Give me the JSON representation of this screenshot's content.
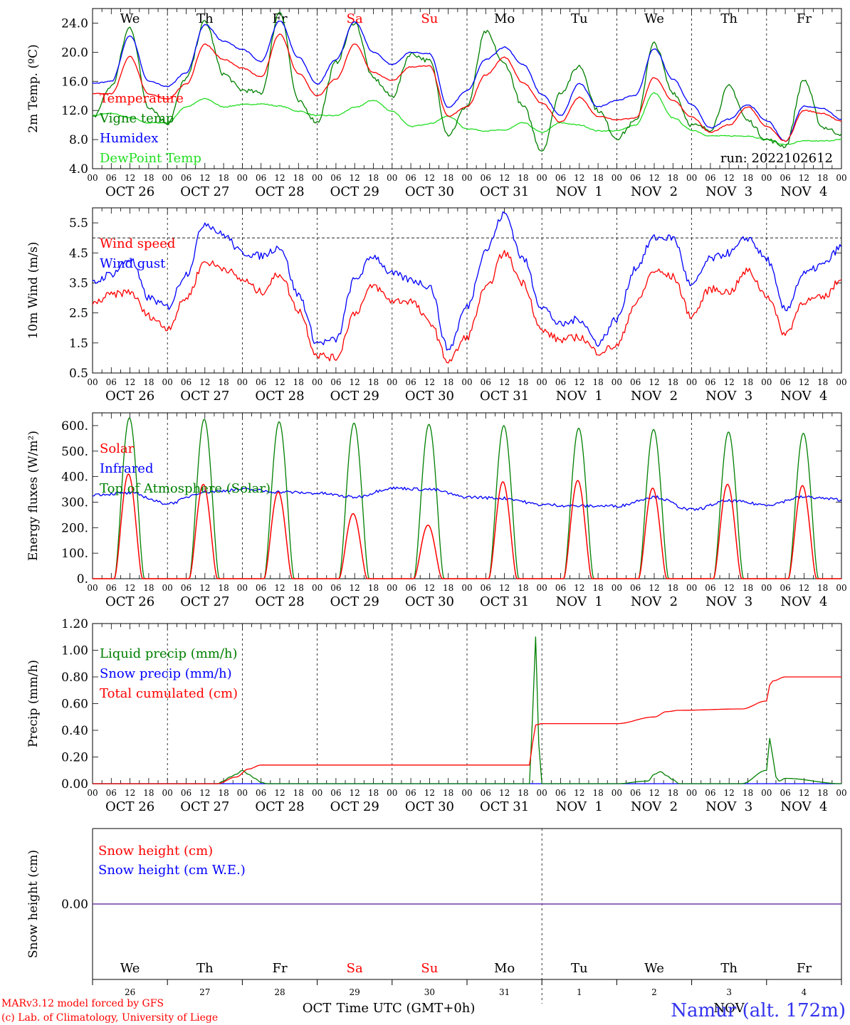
{
  "colors": {
    "red": "#ff0000",
    "green": "#008000",
    "blue": "#0000ff",
    "lightgreen": "#22dd22",
    "purple": "#7a3a90",
    "station": "#3333ee",
    "axis": "#000000"
  },
  "time_axis": {
    "hour_ticks": [
      "00",
      "06",
      "12",
      "18"
    ],
    "final_tick": "00",
    "dates": [
      "OCT 26",
      "OCT 27",
      "OCT 28",
      "OCT 29",
      "OCT 30",
      "OCT 31",
      "NOV  1",
      "NOV  2",
      "NOV  3",
      "NOV  4"
    ],
    "weekdays": [
      "We",
      "Th",
      "Fr",
      "Sa",
      "Su",
      "Mo",
      "Tu",
      "We",
      "Th",
      "Fr"
    ],
    "weekend_days": [
      3,
      4
    ],
    "day_numbers": [
      "26",
      "27",
      "28",
      "29",
      "30",
      "31",
      "1",
      "2",
      "3",
      "4"
    ],
    "month_labels": [
      "OCT",
      "NOV"
    ]
  },
  "footer": {
    "model_line": "MARv3.12 model forced by GFS",
    "lab_line": "(c) Lab. of Climatology, University of Liege",
    "xlabel": "Time UTC (GMT+0h)",
    "station": "Namur (alt. 172m)"
  },
  "chart_data": [
    {
      "type": "line",
      "ylabel": "2m Temp. (ºC)",
      "ylim": [
        4,
        26
      ],
      "yticks": [
        "4.0",
        "8.0",
        "12.0",
        "16.0",
        "20.0",
        "24.0"
      ],
      "x_unit": "hours since OCT 26 00 UTC",
      "annotation": "run: 2022102612",
      "legend_position": "left",
      "series": [
        {
          "name": "Temperature",
          "color": "red",
          "x": [
            0,
            6,
            12,
            18,
            24,
            30,
            36,
            42,
            48,
            54,
            60,
            66,
            72,
            78,
            84,
            90,
            96,
            102,
            108,
            114,
            120,
            126,
            132,
            138,
            144,
            150,
            156,
            162,
            168,
            174,
            180,
            186,
            192,
            198,
            204,
            210,
            216,
            222,
            228,
            234,
            240
          ],
          "values": [
            14.3,
            14.3,
            19.4,
            14.2,
            13.6,
            15.6,
            21.1,
            19.0,
            17.8,
            16.6,
            22.5,
            17.1,
            14.0,
            16.3,
            21.1,
            17.2,
            16.1,
            18.0,
            18.1,
            11.2,
            12.5,
            16.9,
            19.3,
            15.8,
            13.0,
            10.4,
            13.8,
            11.2,
            10.7,
            11.0,
            16.5,
            13.4,
            11.1,
            9.0,
            10.0,
            12.5,
            9.8,
            7.8,
            12.0,
            11.6,
            10.5
          ]
        },
        {
          "name": "Vigne temp",
          "color": "green",
          "x": [
            0,
            6,
            12,
            18,
            24,
            30,
            36,
            42,
            48,
            54,
            60,
            66,
            72,
            78,
            84,
            90,
            96,
            102,
            108,
            114,
            120,
            126,
            132,
            138,
            144,
            150,
            156,
            162,
            168,
            174,
            180,
            186,
            192,
            198,
            204,
            210,
            216,
            222,
            228,
            234,
            240
          ],
          "values": [
            11.0,
            15.3,
            23.4,
            12.5,
            10.3,
            16.4,
            24.2,
            17.0,
            14.8,
            14.4,
            25.6,
            13.2,
            10.4,
            18.6,
            24.1,
            16.4,
            13.9,
            19.8,
            18.8,
            8.7,
            12.6,
            22.8,
            18.4,
            12.5,
            6.5,
            14.5,
            18.1,
            12.0,
            8.2,
            10.5,
            21.2,
            14.5,
            10.0,
            9.4,
            15.3,
            10.6,
            8.0,
            7.1,
            16.2,
            9.7,
            8.8
          ]
        },
        {
          "name": "Humidex",
          "color": "blue",
          "x": [
            0,
            6,
            12,
            18,
            24,
            30,
            36,
            42,
            48,
            54,
            60,
            66,
            72,
            78,
            84,
            90,
            96,
            102,
            108,
            114,
            120,
            126,
            132,
            138,
            144,
            150,
            156,
            162,
            168,
            174,
            180,
            186,
            192,
            198,
            204,
            210,
            216,
            222,
            228,
            234,
            240
          ],
          "values": [
            15.7,
            16.0,
            22.3,
            16.0,
            15.3,
            17.2,
            23.8,
            21.5,
            20.4,
            18.7,
            24.3,
            19.3,
            15.6,
            19.0,
            24.2,
            20.0,
            18.3,
            20.0,
            19.8,
            12.4,
            14.7,
            19.0,
            20.7,
            18.3,
            14.2,
            11.3,
            15.7,
            12.5,
            13.4,
            14.1,
            20.5,
            16.3,
            12.8,
            9.6,
            10.8,
            12.8,
            10.6,
            7.8,
            12.6,
            12.3,
            10.8
          ]
        },
        {
          "name": "DewPoint Temp",
          "color": "lightgreen",
          "x": [
            0,
            6,
            12,
            18,
            24,
            30,
            36,
            42,
            48,
            54,
            60,
            66,
            72,
            78,
            84,
            90,
            96,
            102,
            108,
            114,
            120,
            126,
            132,
            138,
            144,
            150,
            156,
            162,
            168,
            174,
            180,
            186,
            192,
            198,
            204,
            210,
            216,
            222,
            228,
            234,
            240
          ],
          "values": [
            11.3,
            11.6,
            11.0,
            10.3,
            10.3,
            12.5,
            13.6,
            12.5,
            12.8,
            12.9,
            12.6,
            11.9,
            11.3,
            11.3,
            12.4,
            13.4,
            11.9,
            9.8,
            10.2,
            11.2,
            9.5,
            9.2,
            9.3,
            10.3,
            9.0,
            10.3,
            10.0,
            9.2,
            9.2,
            10.0,
            14.4,
            11.0,
            9.3,
            8.5,
            8.5,
            8.5,
            8.0,
            7.3,
            7.8,
            7.8,
            8.0
          ]
        }
      ]
    },
    {
      "type": "line",
      "ylabel": "10m Wind (m/s)",
      "ylim": [
        0.5,
        6.0
      ],
      "yticks": [
        "0.5",
        "1.5",
        "2.5",
        "3.5",
        "4.5",
        "5.5"
      ],
      "reference_line": 5.0,
      "x_unit": "hours since OCT 26 00 UTC",
      "legend_position": "left",
      "series": [
        {
          "name": "Wind speed",
          "color": "red",
          "x": [
            0,
            6,
            12,
            18,
            24,
            30,
            36,
            42,
            48,
            54,
            60,
            66,
            72,
            78,
            84,
            90,
            96,
            102,
            108,
            114,
            120,
            126,
            132,
            138,
            144,
            150,
            156,
            162,
            168,
            174,
            180,
            186,
            192,
            198,
            204,
            210,
            216,
            222,
            228,
            234,
            240
          ],
          "values": [
            2.8,
            3.1,
            3.2,
            2.4,
            2.0,
            3.0,
            4.2,
            4.0,
            3.6,
            3.2,
            3.8,
            2.6,
            1.1,
            1.0,
            2.5,
            3.4,
            2.9,
            2.9,
            2.2,
            0.9,
            1.7,
            3.3,
            4.5,
            3.5,
            1.9,
            1.6,
            1.7,
            1.2,
            1.4,
            2.8,
            3.9,
            3.7,
            2.4,
            3.3,
            3.2,
            3.9,
            3.1,
            1.8,
            2.9,
            3.0,
            3.6
          ]
        },
        {
          "name": "Wind gust",
          "color": "blue",
          "x": [
            0,
            6,
            12,
            18,
            24,
            30,
            36,
            42,
            48,
            54,
            60,
            66,
            72,
            78,
            84,
            90,
            96,
            102,
            108,
            114,
            120,
            126,
            132,
            138,
            144,
            150,
            156,
            162,
            168,
            174,
            180,
            186,
            192,
            198,
            204,
            210,
            216,
            222,
            228,
            234,
            240
          ],
          "values": [
            3.5,
            3.8,
            4.3,
            3.0,
            2.7,
            3.8,
            5.5,
            5.1,
            4.5,
            4.4,
            4.7,
            3.1,
            1.5,
            1.6,
            3.6,
            4.4,
            3.8,
            3.6,
            3.4,
            1.3,
            2.7,
            4.6,
            5.8,
            4.3,
            2.7,
            2.1,
            2.3,
            1.5,
            2.3,
            4.0,
            5.0,
            5.0,
            3.4,
            4.3,
            4.5,
            5.0,
            4.3,
            2.6,
            3.8,
            4.1,
            4.7
          ]
        }
      ]
    },
    {
      "type": "line",
      "ylabel": "Energy fluxes (W/m²)",
      "ylim": [
        0,
        650
      ],
      "yticks": [
        "0.",
        "100.",
        "200.",
        "300.",
        "400.",
        "500.",
        "600."
      ],
      "x_unit": "hours since OCT 26 00 UTC",
      "legend_position": "left",
      "series": [
        {
          "name": "Solar",
          "color": "red",
          "peaks": [
            410,
            370,
            340,
            255,
            210,
            380,
            385,
            355,
            370,
            365
          ],
          "peak_hour": 11.5,
          "day_length_hours": 9
        },
        {
          "name": "Infrared",
          "color": "blue",
          "x": [
            0,
            12,
            24,
            36,
            48,
            60,
            72,
            84,
            96,
            108,
            120,
            132,
            144,
            156,
            168,
            180,
            192,
            204,
            216,
            228,
            240
          ],
          "values": [
            330,
            335,
            295,
            340,
            350,
            340,
            335,
            320,
            355,
            350,
            320,
            315,
            290,
            285,
            285,
            320,
            270,
            305,
            290,
            320,
            310
          ]
        },
        {
          "name": "Top of Atmosphere (Solar)",
          "color": "green",
          "peaks": [
            630,
            625,
            615,
            610,
            605,
            600,
            590,
            585,
            575,
            570
          ],
          "peak_hour": 11.8,
          "day_length_hours": 9.6
        }
      ]
    },
    {
      "type": "line",
      "ylabel": "Precip (mm/h)",
      "ylim": [
        0,
        1.2
      ],
      "yticks": [
        "0.00",
        "0.20",
        "0.40",
        "0.60",
        "0.80",
        "1.00",
        "1.20"
      ],
      "x_unit": "hours since OCT 26 00 UTC",
      "legend_position": "left",
      "series": [
        {
          "name": "Liquid precip (mm/h)",
          "color": "green",
          "x": [
            0,
            40,
            42,
            44,
            46,
            48,
            50,
            52,
            54,
            56,
            140,
            141,
            142,
            143,
            144,
            168,
            178,
            180,
            182,
            184,
            186,
            188,
            208,
            216,
            217,
            218,
            219,
            220,
            222,
            240
          ],
          "values": [
            0,
            0,
            0.02,
            0.05,
            0.07,
            0.1,
            0.07,
            0.04,
            0.01,
            0,
            0,
            0.5,
            1.1,
            0.3,
            0,
            0,
            0.02,
            0.07,
            0.09,
            0.06,
            0.03,
            0,
            0,
            0.1,
            0.34,
            0.2,
            0.05,
            0.02,
            0.04,
            0
          ]
        },
        {
          "name": "Snow precip (mm/h)",
          "color": "blue",
          "x": [
            0,
            240
          ],
          "values": [
            0,
            0
          ]
        },
        {
          "name": "Total cumulated (cm)",
          "color": "red",
          "x": [
            0,
            40,
            46,
            50,
            54,
            140,
            141,
            142,
            144,
            168,
            180,
            184,
            188,
            208,
            216,
            217,
            218,
            222,
            240
          ],
          "values": [
            0,
            0,
            0.05,
            0.11,
            0.14,
            0.14,
            0.3,
            0.44,
            0.45,
            0.45,
            0.5,
            0.54,
            0.55,
            0.56,
            0.62,
            0.74,
            0.77,
            0.8,
            0.8
          ]
        }
      ]
    },
    {
      "type": "line",
      "ylabel": "Snow height (cm)",
      "yticks": [
        "0.00"
      ],
      "x_unit": "hours since OCT 26 00 UTC",
      "legend_position": "left",
      "series": [
        {
          "name": "Snow height (cm)",
          "color": "red",
          "x": [
            0,
            240
          ],
          "values": [
            0,
            0
          ]
        },
        {
          "name": "Snow height (cm W.E.)",
          "color": "blue",
          "x": [
            0,
            240
          ],
          "values": [
            0,
            0
          ]
        }
      ]
    }
  ]
}
